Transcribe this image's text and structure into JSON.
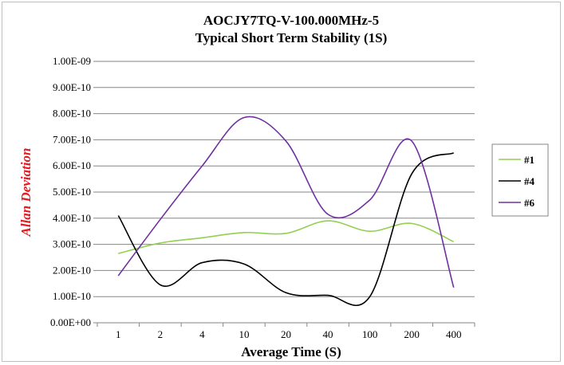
{
  "chart_data": {
    "type": "line",
    "title": "AOCJY7TQ-V-100.000MHz-5",
    "subtitle": "Typical Short Term Stability (1S)",
    "xlabel": "Average Time (S)",
    "ylabel": "Allan Deviation",
    "categories": [
      "1",
      "2",
      "4",
      "10",
      "20",
      "40",
      "100",
      "200",
      "400"
    ],
    "y_ticks": [
      "0.00E+00",
      "1.00E-10",
      "2.00E-10",
      "3.00E-10",
      "4.00E-10",
      "5.00E-10",
      "6.00E-10",
      "7.00E-10",
      "8.00E-10",
      "9.00E-10",
      "1.00E-09"
    ],
    "ylim": [
      0,
      1e-09
    ],
    "grid": true,
    "legend_position": "right",
    "series": [
      {
        "name": "#1",
        "color": "#92d050",
        "values": [
          2.65e-10,
          3.05e-10,
          3.25e-10,
          3.45e-10,
          3.42e-10,
          3.9e-10,
          3.5e-10,
          3.8e-10,
          3.1e-10
        ]
      },
      {
        "name": "#4",
        "color": "#000000",
        "values": [
          4.1e-10,
          1.45e-10,
          2.3e-10,
          2.25e-10,
          1.15e-10,
          1.05e-10,
          1e-10,
          5.7e-10,
          6.5e-10
        ]
      },
      {
        "name": "#6",
        "color": "#7030a0",
        "values": [
          1.8e-10,
          3.95e-10,
          6e-10,
          7.85e-10,
          6.95e-10,
          4.15e-10,
          4.7e-10,
          6.95e-10,
          1.35e-10
        ]
      }
    ]
  }
}
